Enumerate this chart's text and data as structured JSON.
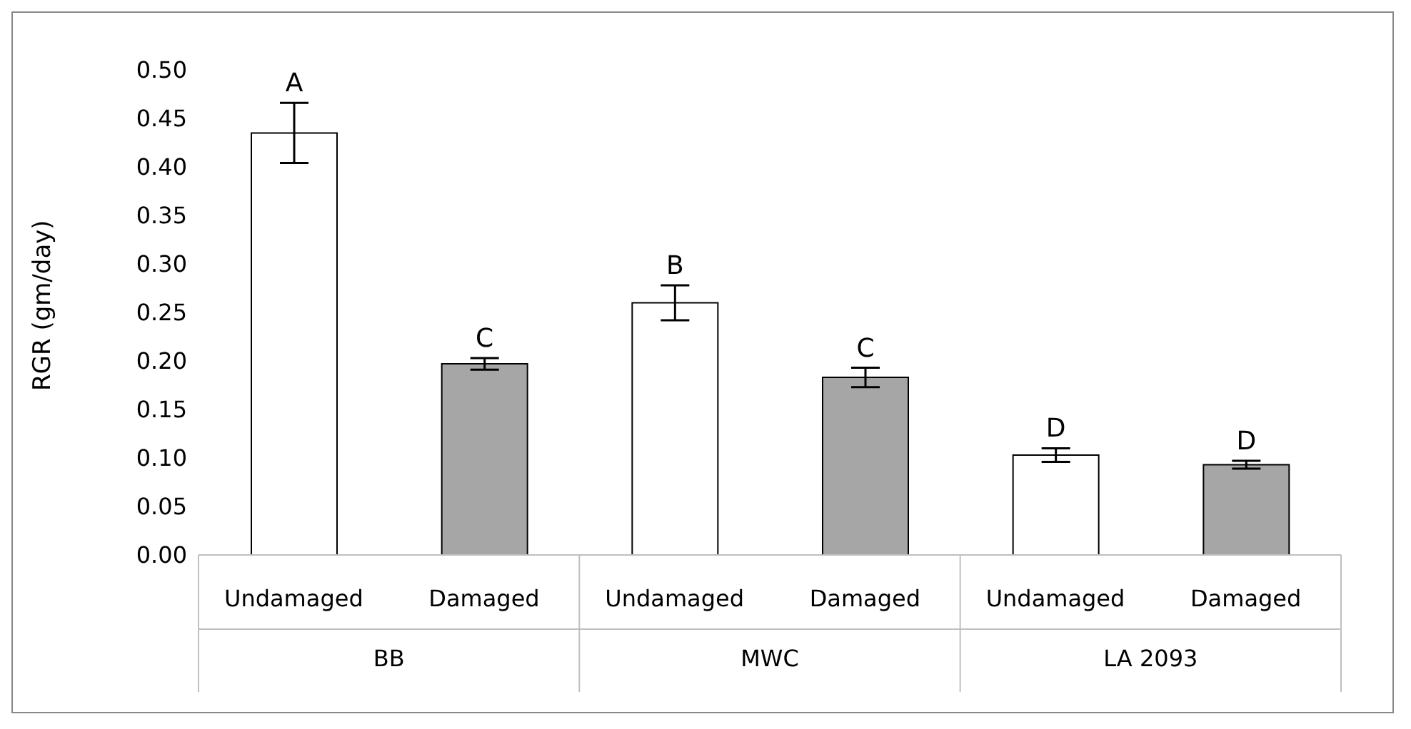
{
  "chart_data": {
    "type": "bar",
    "ylabel": "RGR (gm/day)",
    "categories": [
      "Undamaged",
      "Damaged",
      "Undamaged",
      "Damaged",
      "Undamaged",
      "Damaged"
    ],
    "values": [
      0.435,
      0.197,
      0.26,
      0.183,
      0.103,
      0.093
    ],
    "colors": [
      "#ffffff",
      "#a6a6a6",
      "#ffffff",
      "#a6a6a6",
      "#ffffff",
      "#a6a6a6"
    ],
    "errors": [
      0.031,
      0.006,
      0.018,
      0.01,
      0.007,
      0.004
    ],
    "value_labels": [
      "A",
      "C",
      "B",
      "C",
      "D",
      "D"
    ],
    "annotations": [
      "BB",
      "MWC",
      "LA 2093"
    ],
    "ylim": [
      0,
      0.5
    ],
    "yticks": [
      {
        "value": 0,
        "label": "0.00"
      },
      {
        "value": 0.05,
        "label": "0.05"
      },
      {
        "value": 0.1,
        "label": "0.10"
      },
      {
        "value": 0.15,
        "label": "0.15"
      },
      {
        "value": 0.2,
        "label": "0.20"
      },
      {
        "value": 0.25,
        "label": "0.25"
      },
      {
        "value": 0.3,
        "label": "0.30"
      },
      {
        "value": 0.35,
        "label": "0.35"
      },
      {
        "value": 0.4,
        "label": "0.40"
      },
      {
        "value": 0.45,
        "label": "0.45"
      },
      {
        "value": 0.5,
        "label": "0.50"
      }
    ],
    "grid": false,
    "legend": false
  }
}
